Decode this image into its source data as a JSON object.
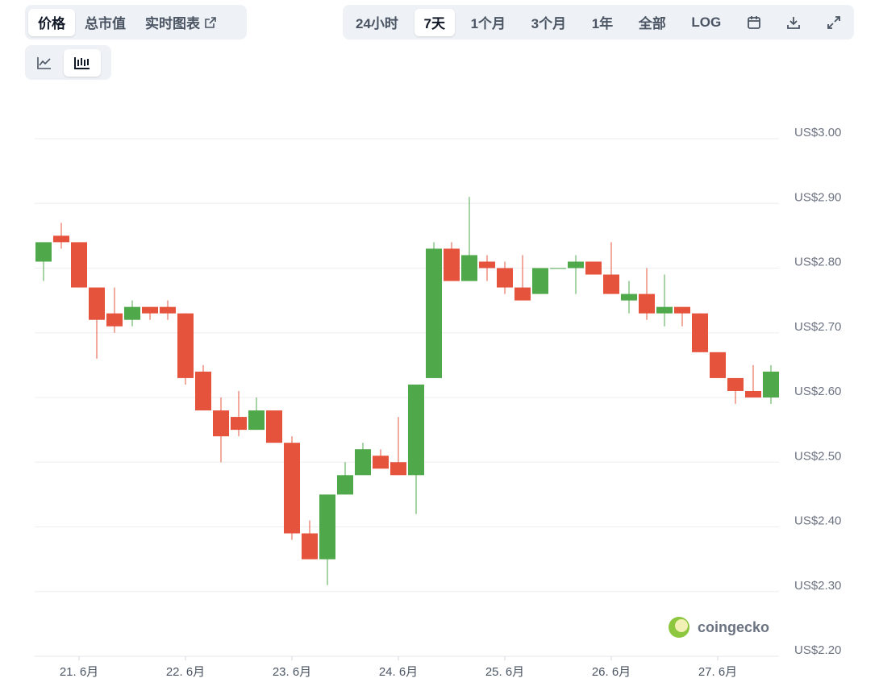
{
  "ui": {
    "view_tabs": [
      "价格",
      "总市值",
      "实时图表"
    ],
    "range_buttons": [
      "24小时",
      "7天",
      "1个月",
      "3个月",
      "1年",
      "全部",
      "LOG"
    ],
    "watermark": "coingecko"
  },
  "chart_data": {
    "type": "candlestick",
    "categories": [
      null,
      null,
      "21. 6月",
      null,
      null,
      null,
      null,
      null,
      "22. 6月",
      null,
      null,
      null,
      null,
      null,
      "23. 6月",
      null,
      null,
      null,
      null,
      null,
      "24. 6月",
      null,
      null,
      null,
      null,
      null,
      "25. 6月",
      null,
      null,
      null,
      null,
      null,
      "26. 6月",
      null,
      null,
      null,
      null,
      null,
      "27. 6月",
      null,
      null,
      null
    ],
    "open": [
      2.81,
      2.85,
      2.84,
      2.77,
      2.73,
      2.72,
      2.74,
      2.74,
      2.73,
      2.64,
      2.58,
      2.57,
      2.55,
      2.58,
      2.53,
      2.39,
      2.35,
      2.45,
      2.48,
      2.51,
      2.5,
      2.48,
      2.63,
      2.83,
      2.78,
      2.81,
      2.8,
      2.77,
      2.76,
      2.8,
      2.8,
      2.81,
      2.79,
      2.75,
      2.76,
      2.73,
      2.74,
      2.73,
      2.67,
      2.63,
      2.61,
      2.6
    ],
    "high": [
      2.84,
      2.87,
      2.84,
      2.77,
      2.77,
      2.75,
      2.74,
      2.75,
      2.73,
      2.65,
      2.6,
      2.61,
      2.6,
      2.58,
      2.54,
      2.41,
      2.45,
      2.5,
      2.53,
      2.52,
      2.57,
      2.62,
      2.84,
      2.84,
      2.91,
      2.82,
      2.81,
      2.82,
      2.8,
      2.8,
      2.82,
      2.81,
      2.84,
      2.78,
      2.8,
      2.79,
      2.74,
      2.73,
      2.67,
      2.63,
      2.65,
      2.65
    ],
    "low": [
      2.78,
      2.83,
      2.77,
      2.66,
      2.7,
      2.71,
      2.72,
      2.72,
      2.62,
      2.58,
      2.5,
      2.54,
      2.55,
      2.53,
      2.38,
      2.35,
      2.31,
      2.45,
      2.48,
      2.49,
      2.48,
      2.42,
      2.63,
      2.78,
      2.78,
      2.78,
      2.76,
      2.75,
      2.76,
      2.8,
      2.76,
      2.79,
      2.76,
      2.73,
      2.72,
      2.71,
      2.71,
      2.67,
      2.63,
      2.59,
      2.6,
      2.59
    ],
    "close": [
      2.84,
      2.84,
      2.77,
      2.72,
      2.71,
      2.74,
      2.73,
      2.73,
      2.63,
      2.58,
      2.54,
      2.55,
      2.58,
      2.53,
      2.39,
      2.35,
      2.45,
      2.48,
      2.52,
      2.49,
      2.48,
      2.62,
      2.83,
      2.78,
      2.82,
      2.8,
      2.77,
      2.75,
      2.8,
      2.8,
      2.81,
      2.79,
      2.76,
      2.76,
      2.73,
      2.74,
      2.73,
      2.67,
      2.63,
      2.61,
      2.6,
      2.64
    ],
    "up_color": "#4fa849",
    "down_color": "#e5533d",
    "ylim": [
      2.2,
      3.0
    ],
    "yticks": [
      {
        "value": 2.2,
        "label": "US$2.20"
      },
      {
        "value": 2.3,
        "label": "US$2.30"
      },
      {
        "value": 2.4,
        "label": "US$2.40"
      },
      {
        "value": 2.5,
        "label": "US$2.50"
      },
      {
        "value": 2.6,
        "label": "US$2.60"
      },
      {
        "value": 2.7,
        "label": "US$2.70"
      },
      {
        "value": 2.8,
        "label": "US$2.80"
      },
      {
        "value": 2.9,
        "label": "US$2.90"
      },
      {
        "value": 3.0,
        "label": "US$3.00"
      }
    ],
    "grid": true
  }
}
